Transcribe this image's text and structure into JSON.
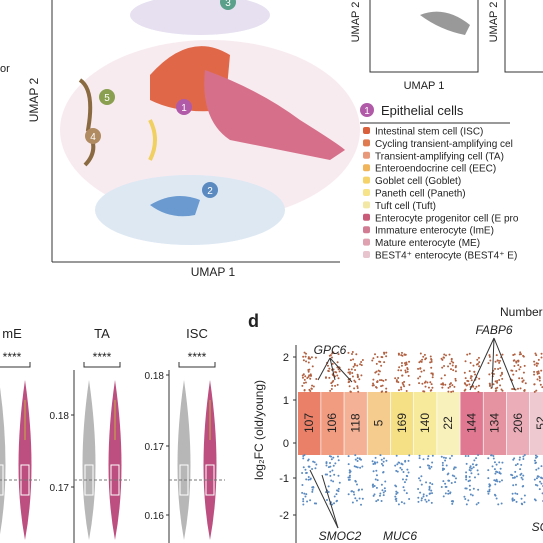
{
  "umap": {
    "x_label": "UMAP 1",
    "y_label": "UMAP 2",
    "left_note": "or",
    "clusters": [
      "1",
      "2",
      "3",
      "4",
      "5"
    ]
  },
  "mini_umaps": {
    "x_label": "UMAP 1",
    "y_label": "UMAP 2",
    "y_label_2": "UMAP 2"
  },
  "legend": {
    "group_number": "1",
    "group": "Epithelial cells",
    "items": [
      {
        "label": "Intestinal stem cell (ISC)",
        "color": "#d9603b"
      },
      {
        "label": "Cycling transient-amplifying cel",
        "color": "#e07a4f"
      },
      {
        "label": "Transient-amplifying cell (TA)",
        "color": "#e8997a"
      },
      {
        "label": "Enteroendocrine cell (EEC)",
        "color": "#f0b45a"
      },
      {
        "label": "Goblet cell (Goblet)",
        "color": "#f5d36a"
      },
      {
        "label": "Paneth cell (Paneth)",
        "color": "#f7e48a"
      },
      {
        "label": "Tuft cell (Tuft)",
        "color": "#f3e7a6"
      },
      {
        "label": "Enterocyte progenitor cell (E pro",
        "color": "#c95b78"
      },
      {
        "label": "Immature enterocyte (ImE)",
        "color": "#d27c93"
      },
      {
        "label": "Mature enterocyte (ME)",
        "color": "#dfa0b0"
      },
      {
        "label": "BEST4⁺ enterocyte (BEST4⁺ E)",
        "color": "#e8c4cf"
      }
    ]
  },
  "violins": {
    "panels": [
      {
        "title": "mE",
        "sig": "****",
        "ticks": []
      },
      {
        "title": "TA",
        "sig": "****",
        "ticks": [
          "0.18",
          "0.17"
        ]
      },
      {
        "title": "ISC",
        "sig": "****",
        "ticks": [
          "0.18",
          "0.17",
          "0.16"
        ]
      }
    ]
  },
  "panel_d": {
    "letter": "d",
    "header": "Number",
    "y_label": "log₂FC (old/young)",
    "yticks": [
      "2",
      "1",
      "0",
      "-1",
      "-2"
    ],
    "counts": [
      {
        "n": 107,
        "color": "#e86a4f"
      },
      {
        "n": 106,
        "color": "#ef8a6a"
      },
      {
        "n": 118,
        "color": "#f2a382"
      },
      {
        "n": 5,
        "color": "#f5c27a"
      },
      {
        "n": 169,
        "color": "#f5da70"
      },
      {
        "n": 140,
        "color": "#f6e68a"
      },
      {
        "n": 22,
        "color": "#f7eeb0"
      },
      {
        "n": 144,
        "color": "#d9607c"
      },
      {
        "n": 134,
        "color": "#e0808f"
      },
      {
        "n": 206,
        "color": "#e8a0ac"
      },
      {
        "n": 52,
        "color": "#ecc0c8"
      }
    ],
    "genes": [
      "GPC6",
      "FABP6",
      "SMOC2",
      "MUC6",
      "SC"
    ]
  }
}
